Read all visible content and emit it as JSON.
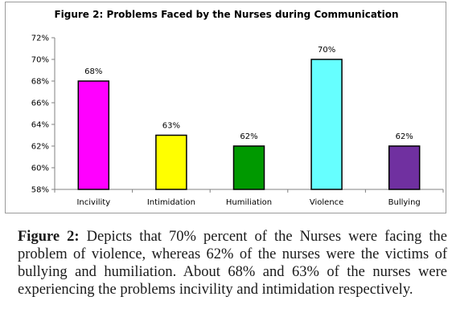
{
  "figure": {
    "caption_label": "Figure 2:",
    "caption_text": "Depicts that 70% percent of the Nurses were facing the problem of violence, whereas 62% of the nurses were the victims of bullying and humiliation. About 68% and 63% of the nurses were experiencing the problems incivility and intimidation respectively."
  },
  "chart_data": {
    "type": "bar",
    "title": "Figure 2: Problems Faced by the Nurses during Communication",
    "xlabel": "",
    "ylabel": "",
    "categories": [
      "Incivility",
      "Intimidation",
      "Humiliation",
      "Violence",
      "Bullying"
    ],
    "values": [
      68,
      63,
      62,
      70,
      62
    ],
    "data_labels": [
      "68%",
      "63%",
      "62%",
      "70%",
      "62%"
    ],
    "colors": [
      "#ff00ff",
      "#ffff00",
      "#009900",
      "#66ffff",
      "#7030a0"
    ],
    "ylim": [
      58,
      72
    ],
    "yticks": [
      58,
      60,
      62,
      64,
      66,
      68,
      70,
      72
    ],
    "ytick_labels": [
      "58%",
      "60%",
      "62%",
      "64%",
      "66%",
      "68%",
      "70%",
      "72%"
    ],
    "grid": false,
    "legend": "none"
  }
}
